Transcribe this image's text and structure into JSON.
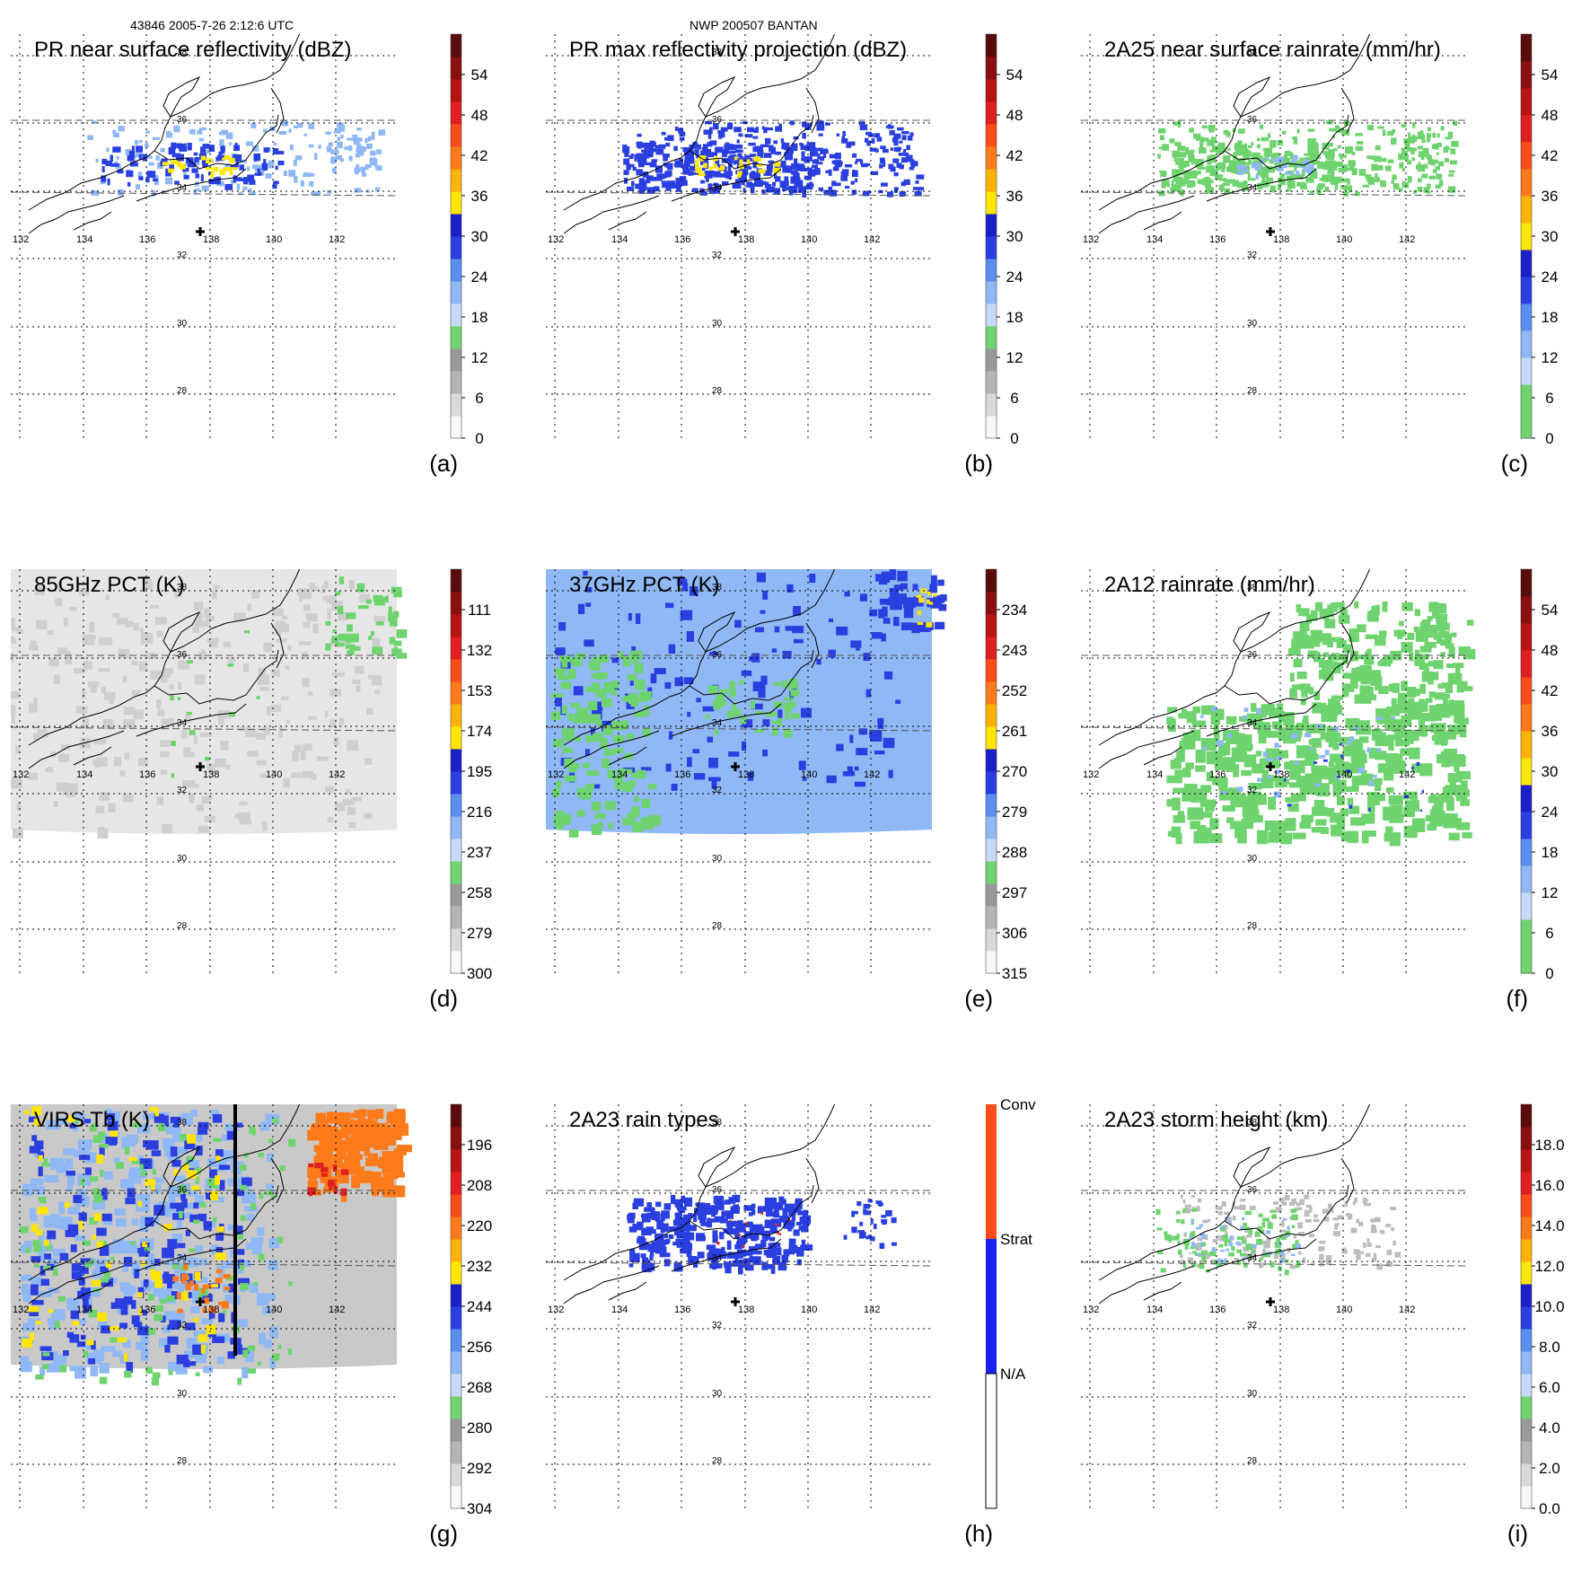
{
  "header": {
    "left": "43846 2005-7-26 2:12:6 UTC",
    "center": "NWP 200507 BANTAN"
  },
  "lon_labels": [
    "132",
    "134",
    "136",
    "138",
    "140",
    "142"
  ],
  "lat_labels": [
    "38",
    "36",
    "34",
    "32",
    "30",
    "28"
  ],
  "colors": {
    "grid": "#000000",
    "coast": "#000000",
    "blue": "#2b3fe0",
    "lightblue": "#8fb8f5",
    "green": "#6fd36f",
    "yellow": "#ffe600",
    "orange": "#ff7a1a",
    "red": "#e02020",
    "gray": "#bdbdbd"
  },
  "panels": [
    {
      "id": "a",
      "title": "PR near surface reflectivity (dBZ)",
      "label": "(a)",
      "ticks": [
        "54",
        "48",
        "42",
        "36",
        "30",
        "24",
        "18",
        "12",
        "6",
        "0"
      ]
    },
    {
      "id": "b",
      "title": "PR max reflectivity projection (dBZ)",
      "label": "(b)",
      "ticks": [
        "54",
        "48",
        "42",
        "36",
        "30",
        "24",
        "18",
        "12",
        "6",
        "0"
      ]
    },
    {
      "id": "c",
      "title": "2A25 near surface rainrate (mm/hr)",
      "label": "(c)",
      "ticks": [
        "54",
        "48",
        "42",
        "36",
        "30",
        "24",
        "18",
        "12",
        "6",
        "0"
      ]
    },
    {
      "id": "d",
      "title": "85GHz PCT (K)",
      "label": "(d)",
      "ticks": [
        "111",
        "132",
        "153",
        "174",
        "195",
        "216",
        "237",
        "258",
        "279",
        "300"
      ]
    },
    {
      "id": "e",
      "title": "37GHz PCT (K)",
      "label": "(e)",
      "ticks": [
        "234",
        "243",
        "252",
        "261",
        "270",
        "279",
        "288",
        "297",
        "306",
        "315"
      ]
    },
    {
      "id": "f",
      "title": "2A12 rainrate (mm/hr)",
      "label": "(f)",
      "ticks": [
        "54",
        "48",
        "42",
        "36",
        "30",
        "24",
        "18",
        "12",
        "6",
        "0"
      ]
    },
    {
      "id": "g",
      "title": "VIRS Tb (K)",
      "label": "(g)",
      "ticks": [
        "196",
        "208",
        "220",
        "232",
        "244",
        "256",
        "268",
        "280",
        "292",
        "304"
      ]
    },
    {
      "id": "h",
      "title": "2A23 rain types",
      "label": "(h)",
      "ticks": [
        "Conv",
        "Strat",
        "N/A"
      ]
    },
    {
      "id": "i",
      "title": "2A23 storm height (km)",
      "label": "(i)",
      "ticks": [
        "18.0",
        "16.0",
        "14.0",
        "12.0",
        "10.0",
        "8.0",
        "6.0",
        "4.0",
        "2.0",
        "0.0"
      ]
    }
  ]
}
